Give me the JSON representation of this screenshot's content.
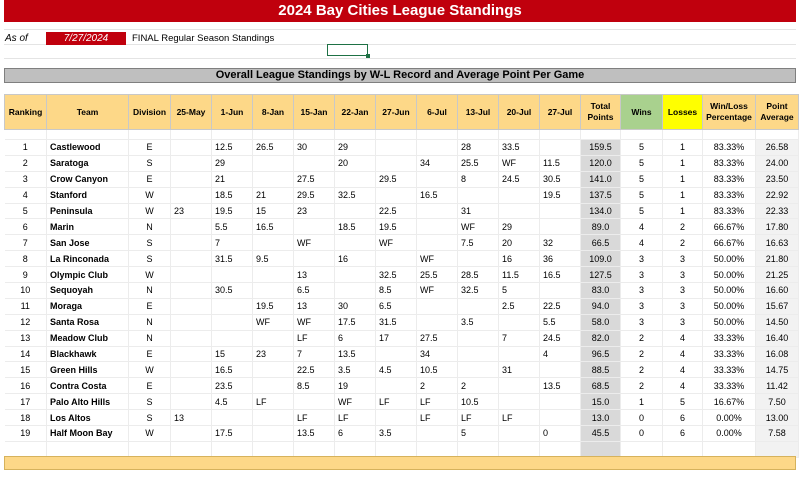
{
  "title": "2024 Bay Cities League Standings",
  "as_of": {
    "label": "As of",
    "date": "7/27/2024",
    "note": "FINAL Regular Season Standings"
  },
  "subtitle": "Overall League Standings by W-L Record and Average Point Per Game",
  "headers": [
    "Ranking",
    "Team",
    "Division",
    "25-May",
    "1-Jun",
    "8-Jan",
    "15-Jan",
    "22-Jan",
    "27-Jun",
    "6-Jul",
    "13-Jul",
    "20-Jul",
    "27-Jul",
    "Total Points",
    "Wins",
    "Losses",
    "Win/Loss Percentage",
    "Point Average"
  ],
  "rows": [
    [
      "1",
      "Castlewood",
      "E",
      "",
      "12.5",
      "26.5",
      "30",
      "29",
      "",
      "",
      "28",
      "33.5",
      "",
      "159.5",
      "5",
      "1",
      "83.33%",
      "26.58"
    ],
    [
      "2",
      "Saratoga",
      "S",
      "",
      "29",
      "",
      "",
      "20",
      "",
      "34",
      "25.5",
      "WF",
      "11.5",
      "120.0",
      "5",
      "1",
      "83.33%",
      "24.00"
    ],
    [
      "3",
      "Crow Canyon",
      "E",
      "",
      "21",
      "",
      "27.5",
      "",
      "29.5",
      "",
      "8",
      "24.5",
      "30.5",
      "141.0",
      "5",
      "1",
      "83.33%",
      "23.50"
    ],
    [
      "4",
      "Stanford",
      "W",
      "",
      "18.5",
      "21",
      "29.5",
      "32.5",
      "",
      "16.5",
      "",
      "",
      "19.5",
      "137.5",
      "5",
      "1",
      "83.33%",
      "22.92"
    ],
    [
      "5",
      "Peninsula",
      "W",
      "23",
      "19.5",
      "15",
      "23",
      "",
      "22.5",
      "",
      "31",
      "",
      "",
      "134.0",
      "5",
      "1",
      "83.33%",
      "22.33"
    ],
    [
      "6",
      "Marin",
      "N",
      "",
      "5.5",
      "16.5",
      "",
      "18.5",
      "19.5",
      "",
      "WF",
      "29",
      "",
      "89.0",
      "4",
      "2",
      "66.67%",
      "17.80"
    ],
    [
      "7",
      "San Jose",
      "S",
      "",
      "7",
      "",
      "WF",
      "",
      "WF",
      "",
      "7.5",
      "20",
      "32",
      "66.5",
      "4",
      "2",
      "66.67%",
      "16.63"
    ],
    [
      "8",
      "La Rinconada",
      "S",
      "",
      "31.5",
      "9.5",
      "",
      "16",
      "",
      "WF",
      "",
      "16",
      "36",
      "109.0",
      "3",
      "3",
      "50.00%",
      "21.80"
    ],
    [
      "9",
      "Olympic Club",
      "W",
      "",
      "",
      "",
      "13",
      "",
      "32.5",
      "25.5",
      "28.5",
      "11.5",
      "16.5",
      "127.5",
      "3",
      "3",
      "50.00%",
      "21.25"
    ],
    [
      "10",
      "Sequoyah",
      "N",
      "",
      "30.5",
      "",
      "6.5",
      "",
      "8.5",
      "WF",
      "32.5",
      "5",
      "",
      "83.0",
      "3",
      "3",
      "50.00%",
      "16.60"
    ],
    [
      "11",
      "Moraga",
      "E",
      "",
      "",
      "19.5",
      "13",
      "30",
      "6.5",
      "",
      "",
      "2.5",
      "22.5",
      "94.0",
      "3",
      "3",
      "50.00%",
      "15.67"
    ],
    [
      "12",
      "Santa Rosa",
      "N",
      "",
      "",
      "WF",
      "WF",
      "17.5",
      "31.5",
      "",
      "3.5",
      "",
      "5.5",
      "58.0",
      "3",
      "3",
      "50.00%",
      "14.50"
    ],
    [
      "13",
      "Meadow Club",
      "N",
      "",
      "",
      "",
      "LF",
      "6",
      "17",
      "27.5",
      "",
      "7",
      "24.5",
      "82.0",
      "2",
      "4",
      "33.33%",
      "16.40"
    ],
    [
      "14",
      "Blackhawk",
      "E",
      "",
      "15",
      "23",
      "7",
      "13.5",
      "",
      "34",
      "",
      "",
      "4",
      "96.5",
      "2",
      "4",
      "33.33%",
      "16.08"
    ],
    [
      "15",
      "Green Hills",
      "W",
      "",
      "16.5",
      "",
      "22.5",
      "3.5",
      "4.5",
      "10.5",
      "",
      "31",
      "",
      "88.5",
      "2",
      "4",
      "33.33%",
      "14.75"
    ],
    [
      "16",
      "Contra Costa",
      "E",
      "",
      "23.5",
      "",
      "8.5",
      "19",
      "",
      "2",
      "2",
      "",
      "13.5",
      "68.5",
      "2",
      "4",
      "33.33%",
      "11.42"
    ],
    [
      "17",
      "Palo Alto Hills",
      "S",
      "",
      "4.5",
      "LF",
      "",
      "WF",
      "LF",
      "LF",
      "10.5",
      "",
      "",
      "15.0",
      "1",
      "5",
      "16.67%",
      "7.50"
    ],
    [
      "18",
      "Los Altos",
      "S",
      "13",
      "",
      "",
      "LF",
      "LF",
      "",
      "LF",
      "LF",
      "LF",
      "",
      "13.0",
      "0",
      "6",
      "0.00%",
      "13.00"
    ],
    [
      "19",
      "Half Moon Bay",
      "W",
      "",
      "17.5",
      "",
      "13.5",
      "6",
      "3.5",
      "",
      "5",
      "",
      "0",
      "45.5",
      "0",
      "6",
      "0.00%",
      "7.58"
    ]
  ],
  "colors": {
    "title_bg": "#c0000d",
    "header_bg": "#fdd888",
    "wins_bg": "#a9d18e",
    "losses_bg": "#ffff00"
  }
}
